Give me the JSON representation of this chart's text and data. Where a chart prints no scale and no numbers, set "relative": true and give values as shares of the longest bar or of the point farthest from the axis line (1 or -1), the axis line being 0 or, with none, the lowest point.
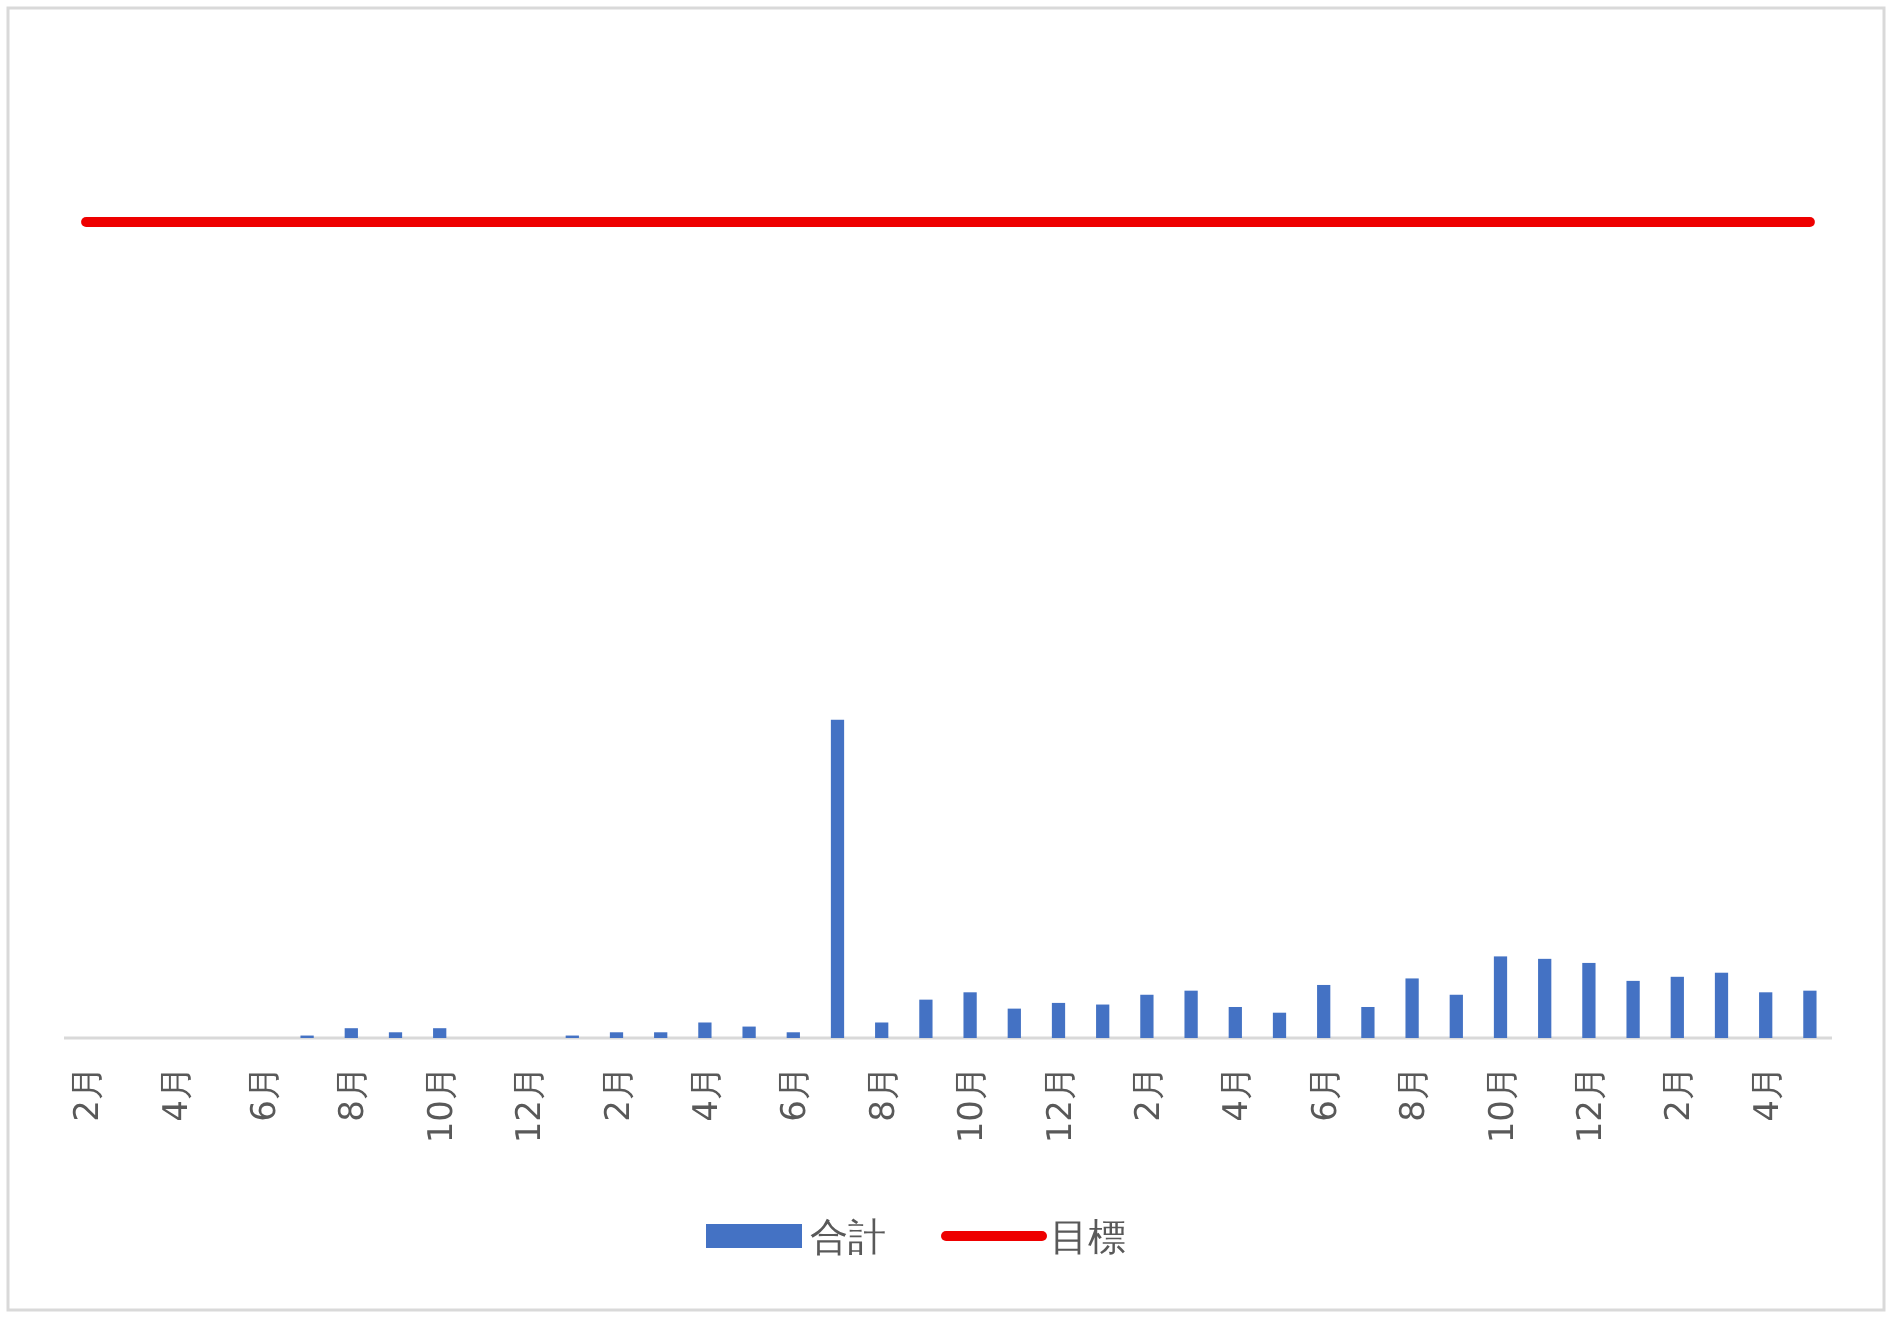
{
  "chart_data": {
    "type": "bar",
    "relative": true,
    "legend": "bottom",
    "categories": [
      "2月",
      null,
      "4月",
      null,
      "6月",
      null,
      "8月",
      null,
      "10月",
      null,
      "12月",
      null,
      "2月",
      null,
      "4月",
      null,
      "6月",
      null,
      "8月",
      null,
      "10月",
      null,
      "12月",
      null,
      "2月",
      null,
      "4月",
      null,
      "6月",
      null,
      "8月",
      null,
      "10月",
      null,
      "12月",
      null,
      "2月",
      null,
      "4月",
      null
    ],
    "series": [
      {
        "name": "合計",
        "color": "#4472c4",
        "values": [
          0,
          0,
          0,
          0,
          0,
          0.003,
          0.012,
          0.007,
          0.012,
          0,
          0,
          0.003,
          0.007,
          0.007,
          0.019,
          0.014,
          0.007,
          0.39,
          0.019,
          0.047,
          0.056,
          0.036,
          0.043,
          0.041,
          0.053,
          0.058,
          0.038,
          0.031,
          0.065,
          0.038,
          0.073,
          0.053,
          0.1,
          0.097,
          0.092,
          0.07,
          0.075,
          0.08,
          0.056,
          0.058
        ]
      },
      {
        "name": "目標",
        "type": "line",
        "color": "#ee0000",
        "values": [
          1,
          1,
          1,
          1,
          1,
          1,
          1,
          1,
          1,
          1,
          1,
          1,
          1,
          1,
          1,
          1,
          1,
          1,
          1,
          1,
          1,
          1,
          1,
          1,
          1,
          1,
          1,
          1,
          1,
          1,
          1,
          1,
          1,
          1,
          1,
          1,
          1,
          1,
          1,
          1
        ]
      }
    ]
  }
}
